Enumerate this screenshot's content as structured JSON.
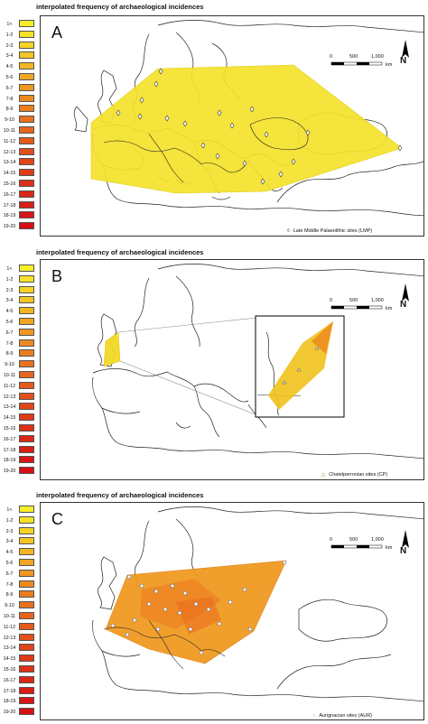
{
  "legend_title": "interpolated frequency of archaeological incidences",
  "legend_classes": [
    {
      "label": "1<",
      "color": "#f6ee2a"
    },
    {
      "label": "1-2",
      "color": "#f6e128"
    },
    {
      "label": "2-3",
      "color": "#f5d326"
    },
    {
      "label": "3-4",
      "color": "#f4c524"
    },
    {
      "label": "4-5",
      "color": "#f3b623"
    },
    {
      "label": "5-6",
      "color": "#f1a621"
    },
    {
      "label": "6-7",
      "color": "#ef9820"
    },
    {
      "label": "7-8",
      "color": "#ed8a1f"
    },
    {
      "label": "8-9",
      "color": "#eb7d1e"
    },
    {
      "label": "9-10",
      "color": "#e9711d"
    },
    {
      "label": "10-11",
      "color": "#e7651c"
    },
    {
      "label": "11-12",
      "color": "#e55a1b"
    },
    {
      "label": "12-13",
      "color": "#e34f1a"
    },
    {
      "label": "13-14",
      "color": "#e14419"
    },
    {
      "label": "14-15",
      "color": "#df3a18"
    },
    {
      "label": "15-16",
      "color": "#dd3018"
    },
    {
      "label": "16-17",
      "color": "#db2717"
    },
    {
      "label": "17-18",
      "color": "#d91e16"
    },
    {
      "label": "18-19",
      "color": "#d71615"
    },
    {
      "label": "19-20",
      "color": "#d50f14"
    }
  ],
  "scale": {
    "ticks": [
      "0",
      "500",
      "1,000"
    ],
    "unit": "km"
  },
  "north_label": "N",
  "panels": [
    {
      "letter": "A",
      "site_legend": "Late Middle Palaeolithic sites (LMP)",
      "site_symbol": "diamond",
      "fill_color": "#f3e22a"
    },
    {
      "letter": "B",
      "site_legend": "Chatelperronian sites (CP)",
      "site_symbol": "triangle",
      "fill_color": "#f2d824"
    },
    {
      "letter": "C",
      "site_legend": "Aurignacian sites (AUR)",
      "site_symbol": "circle",
      "fill_color": "#ef9a22"
    }
  ]
}
